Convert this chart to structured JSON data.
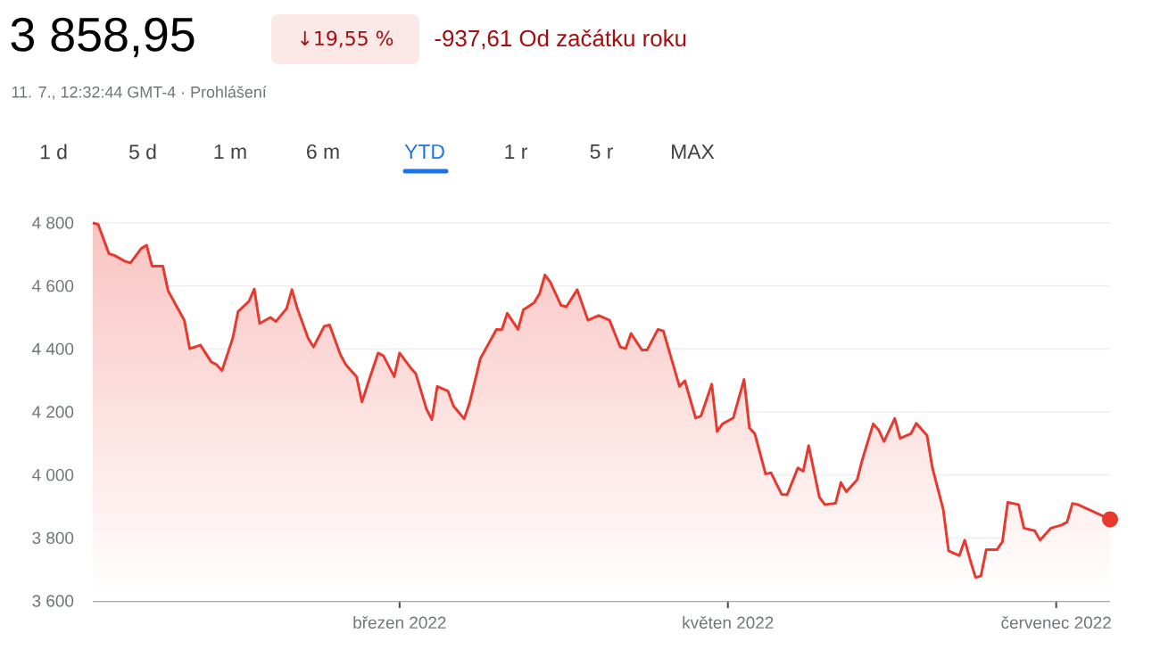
{
  "chart_data": {
    "type": "line",
    "title": "3 858,95",
    "subtitle": "11. 7., 12:32:44 GMT-4 · Prohlášení",
    "annotations": [
      "↓19,55 %",
      "-937,61 Od začátku roku",
      "1 d",
      "5 d",
      "1 m",
      "6 m",
      "YTD",
      "1 r",
      "5 r",
      "MAX"
    ],
    "x": [
      "2022-01-03",
      "2022-01-04",
      "2022-01-06",
      "2022-01-07",
      "2022-01-09",
      "2022-01-10",
      "2022-01-12",
      "2022-01-13",
      "2022-01-14",
      "2022-01-16",
      "2022-01-17",
      "2022-01-20",
      "2022-01-21",
      "2022-01-23",
      "2022-01-25",
      "2022-01-26",
      "2022-01-27",
      "2022-01-29",
      "2022-01-30",
      "2022-02-01",
      "2022-02-02",
      "2022-02-03",
      "2022-02-05",
      "2022-02-06",
      "2022-02-08",
      "2022-02-09",
      "2022-02-10",
      "2022-02-12",
      "2022-02-13",
      "2022-02-15",
      "2022-02-16",
      "2022-02-18",
      "2022-02-19",
      "2022-02-21",
      "2022-02-22",
      "2022-02-23",
      "2022-02-25",
      "2022-02-26",
      "2022-02-28",
      "2022-03-01",
      "2022-03-03",
      "2022-03-04",
      "2022-03-06",
      "2022-03-07",
      "2022-03-08",
      "2022-03-10",
      "2022-03-11",
      "2022-03-13",
      "2022-03-14",
      "2022-03-16",
      "2022-03-19",
      "2022-03-20",
      "2022-03-21",
      "2022-03-23",
      "2022-03-24",
      "2022-03-26",
      "2022-03-27",
      "2022-03-28",
      "2022-03-29",
      "2022-03-31",
      "2022-04-01",
      "2022-04-03",
      "2022-04-05",
      "2022-04-07",
      "2022-04-09",
      "2022-04-11",
      "2022-04-12",
      "2022-04-13",
      "2022-04-15",
      "2022-04-16",
      "2022-04-18",
      "2022-04-19",
      "2022-04-22",
      "2022-04-23",
      "2022-04-25",
      "2022-04-26",
      "2022-04-28",
      "2022-04-29",
      "2022-04-30",
      "2022-05-02",
      "2022-05-04",
      "2022-05-05",
      "2022-05-06",
      "2022-05-08",
      "2022-05-09",
      "2022-05-11",
      "2022-05-12",
      "2022-05-14",
      "2022-05-15",
      "2022-05-16",
      "2022-05-18",
      "2022-05-19",
      "2022-05-21",
      "2022-05-22",
      "2022-05-23",
      "2022-05-25",
      "2022-05-26",
      "2022-05-28",
      "2022-05-29",
      "2022-05-30",
      "2022-06-01",
      "2022-06-02",
      "2022-06-04",
      "2022-06-05",
      "2022-06-07",
      "2022-06-08",
      "2022-06-10",
      "2022-06-11",
      "2022-06-13",
      "2022-06-14",
      "2022-06-15",
      "2022-06-16",
      "2022-06-17",
      "2022-06-18",
      "2022-06-20",
      "2022-06-21",
      "2022-06-22",
      "2022-06-24",
      "2022-06-25",
      "2022-06-27",
      "2022-06-28",
      "2022-06-30",
      "2022-07-02",
      "2022-07-03",
      "2022-07-04",
      "2022-07-05",
      "2022-07-11"
    ],
    "series": [
      {
        "color": "#e8392f",
        "values": [
          4800,
          4795,
          4702,
          4697,
          4678,
          4673,
          4719,
          4729,
          4663,
          4663,
          4584,
          4491,
          4401,
          4412,
          4359,
          4350,
          4331,
          4434,
          4519,
          4551,
          4590,
          4481,
          4500,
          4487,
          4528,
          4588,
          4528,
          4434,
          4406,
          4472,
          4476,
          4382,
          4350,
          4312,
          4232,
          4284,
          4387,
          4378,
          4312,
          4387,
          4341,
          4322,
          4209,
          4176,
          4281,
          4266,
          4219,
          4178,
          4228,
          4369,
          4462,
          4461,
          4513,
          4462,
          4524,
          4547,
          4575,
          4635,
          4612,
          4538,
          4534,
          4588,
          4491,
          4506,
          4491,
          4406,
          4401,
          4449,
          4397,
          4397,
          4462,
          4457,
          4281,
          4299,
          4181,
          4187,
          4288,
          4138,
          4162,
          4181,
          4303,
          4149,
          4131,
          4003,
          4007,
          3938,
          3937,
          4022,
          4012,
          4093,
          3929,
          3906,
          3910,
          3976,
          3947,
          3984,
          4050,
          4162,
          4143,
          4106,
          4179,
          4116,
          4131,
          4164,
          4125,
          4022,
          3891,
          3759,
          3744,
          3793,
          3731,
          3675,
          3679,
          3763,
          3763,
          3788,
          3913,
          3906,
          3831,
          3823,
          3793,
          3831,
          3841,
          3850,
          3909,
          3906,
          3859
        ]
      }
    ],
    "xlim": [
      "2022-01-03",
      "2022-07-11"
    ],
    "xticks": [
      {
        "value": "2022-03-01",
        "label": "březen 2022"
      },
      {
        "value": "2022-05-01",
        "label": "květen 2022"
      },
      {
        "value": "2022-07-01",
        "label": "červenec 2022"
      }
    ],
    "ylim": [
      3600,
      4800
    ],
    "yticks": [
      {
        "value": 3600,
        "label": "3 600"
      },
      {
        "value": 3800,
        "label": "3 800"
      },
      {
        "value": 4000,
        "label": "4 000"
      },
      {
        "value": 4200,
        "label": "4 200"
      },
      {
        "value": 4400,
        "label": "4 400"
      },
      {
        "value": 4600,
        "label": "4 600"
      },
      {
        "value": 4800,
        "label": "4 800"
      }
    ],
    "grid": "y"
  }
}
